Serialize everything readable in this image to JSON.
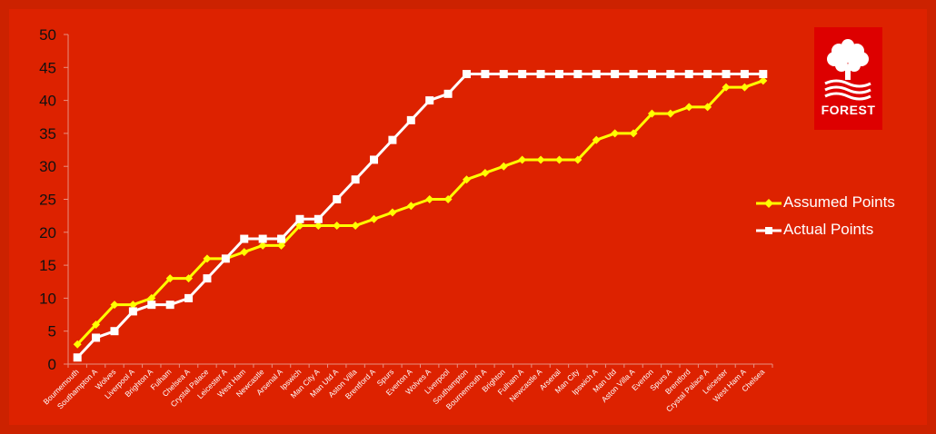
{
  "chart_data": {
    "type": "line",
    "categories": [
      "Bournemouth",
      "Southampton A",
      "Wolves",
      "Liverpool A",
      "Brighton A",
      "Fulham",
      "Chelsea A",
      "Crystal Palace",
      "Leicester A",
      "West Ham",
      "Newcastle",
      "Arsenal A",
      "Ipswich",
      "Man City A",
      "Man Utd A",
      "Aston Villa",
      "Brentford A",
      "Spurs",
      "Everton A",
      "Wolves A",
      "Liverpool",
      "Southampton",
      "Bournemouth A",
      "Brighton",
      "Fulham A",
      "Newcastle A",
      "Arsenal",
      "Man City",
      "Ipswich A",
      "Man Utd",
      "Aston Villa A",
      "Everton",
      "Spurs A",
      "Brentford",
      "Crystal Palace A",
      "Leicester",
      "West Ham A",
      "Chelsea"
    ],
    "series": [
      {
        "name": "Assumed Points",
        "color": "#ffff00",
        "marker": "diamond",
        "values": [
          3,
          6,
          9,
          9,
          10,
          13,
          13,
          16,
          16,
          17,
          18,
          18,
          21,
          21,
          21,
          21,
          22,
          23,
          24,
          25,
          25,
          28,
          29,
          30,
          31,
          31,
          31,
          31,
          34,
          35,
          35,
          38,
          38,
          39,
          39,
          42,
          42,
          43
        ]
      },
      {
        "name": "Actual Points",
        "color": "#ffffff",
        "marker": "square",
        "values": [
          1,
          4,
          5,
          8,
          9,
          9,
          10,
          13,
          16,
          19,
          19,
          19,
          22,
          22,
          25,
          28,
          31,
          34,
          37,
          40,
          41,
          44,
          44,
          44,
          44,
          44,
          44,
          44,
          44,
          44,
          44,
          44,
          44,
          44,
          44,
          44,
          44,
          44
        ]
      }
    ],
    "ylim": [
      0,
      50
    ],
    "yticks": [
      0,
      5,
      10,
      15,
      20,
      25,
      30,
      35,
      40,
      45,
      50
    ],
    "title": "",
    "xlabel": "",
    "ylabel": "",
    "grid": false,
    "legend": "right"
  },
  "logo": {
    "text": "FOREST"
  }
}
